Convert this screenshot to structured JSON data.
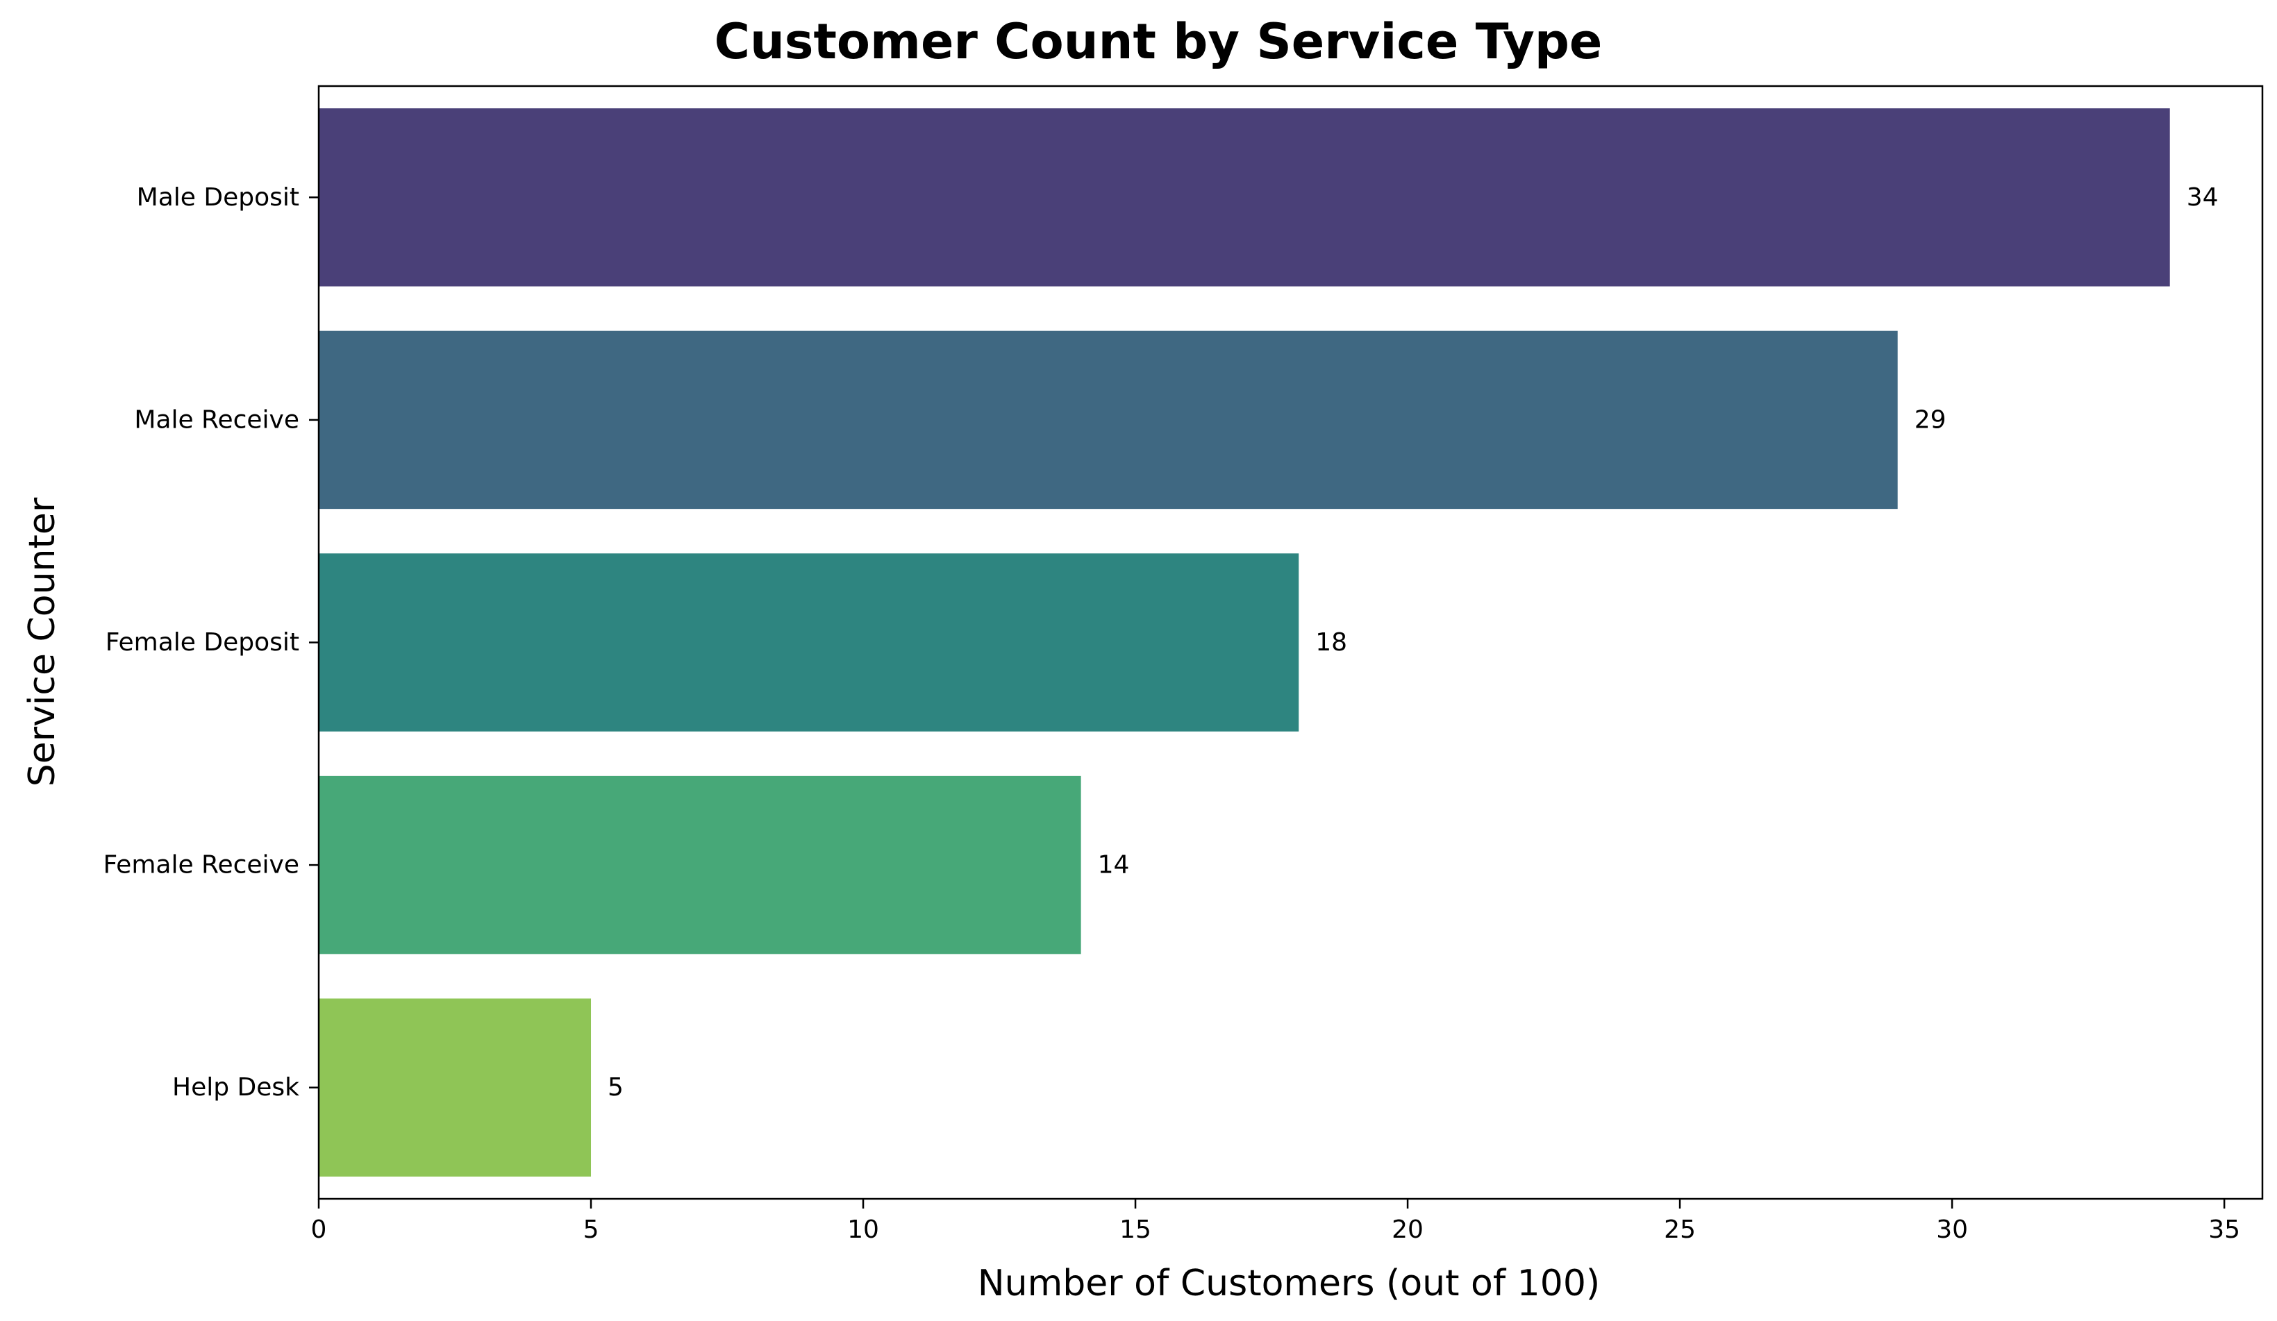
{
  "chart_data": {
    "type": "bar",
    "orientation": "horizontal",
    "title": "Customer Count by Service Type",
    "xlabel": "Number of Customers (out of 100)",
    "ylabel": "Service Counter",
    "categories": [
      "Male Deposit",
      "Male Receive",
      "Female Deposit",
      "Female Receive",
      "Help Desk"
    ],
    "values": [
      34,
      29,
      18,
      14,
      5
    ],
    "colors": [
      "#4a4078",
      "#3f6882",
      "#2e8580",
      "#47a878",
      "#8fc556"
    ],
    "xlim": [
      0,
      35.7
    ],
    "xticks": [
      0,
      5,
      10,
      15,
      20,
      25,
      30,
      35
    ],
    "grid": false,
    "legend": false
  }
}
